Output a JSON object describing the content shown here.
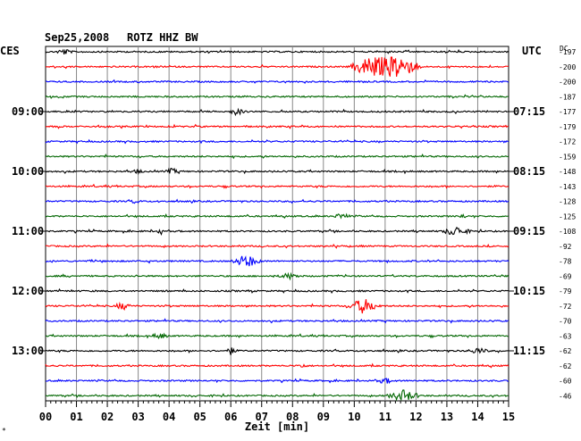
{
  "header": {
    "date": "Sep25,2008",
    "station": "ROTZ HHZ BW",
    "left_axis_label": "CES",
    "right_axis_label": "UTC",
    "dc_label": "DC"
  },
  "footer": {
    "xlabel": "Zeit [min]",
    "corner_mark": "*"
  },
  "chart_data": {
    "type": "line",
    "title": "Sep25,2008  ROTZ HHZ BW",
    "xlabel": "Zeit [min]",
    "x_ticks": [
      "00",
      "01",
      "02",
      "03",
      "04",
      "05",
      "06",
      "07",
      "08",
      "09",
      "10",
      "11",
      "12",
      "13",
      "14",
      "15"
    ],
    "xlim": [
      0,
      15
    ],
    "colors": {
      "black": "#000000",
      "red": "#ff0000",
      "blue": "#0000ff",
      "green": "#006600"
    },
    "left_time_labels": [
      {
        "row": 4,
        "label": "09:00"
      },
      {
        "row": 8,
        "label": "10:00"
      },
      {
        "row": 12,
        "label": "11:00"
      },
      {
        "row": 16,
        "label": "12:00"
      },
      {
        "row": 20,
        "label": "13:00"
      }
    ],
    "right_time_labels": [
      {
        "row": 4,
        "label": "07:15"
      },
      {
        "row": 8,
        "label": "08:15"
      },
      {
        "row": 12,
        "label": "09:15"
      },
      {
        "row": 16,
        "label": "10:15"
      },
      {
        "row": 20,
        "label": "11:15"
      }
    ],
    "traces": [
      {
        "color": "black",
        "dc": "-197",
        "events": [
          [
            0.6,
            3,
            0.3
          ]
        ]
      },
      {
        "color": "red",
        "dc": "-200",
        "events": [
          [
            10.5,
            12,
            0.7
          ],
          [
            11.4,
            14,
            0.8
          ]
        ]
      },
      {
        "color": "blue",
        "dc": "-200",
        "events": []
      },
      {
        "color": "green",
        "dc": "-187",
        "events": []
      },
      {
        "color": "black",
        "dc": "-177",
        "events": [
          [
            6.2,
            3,
            0.3
          ]
        ]
      },
      {
        "color": "red",
        "dc": "-179",
        "events": []
      },
      {
        "color": "blue",
        "dc": "-172",
        "events": []
      },
      {
        "color": "green",
        "dc": "-159",
        "events": []
      },
      {
        "color": "black",
        "dc": "-148",
        "events": [
          [
            4.1,
            3,
            0.25
          ],
          [
            3.0,
            2,
            0.2
          ]
        ]
      },
      {
        "color": "red",
        "dc": "-143",
        "events": []
      },
      {
        "color": "blue",
        "dc": "-128",
        "events": [
          [
            2.9,
            2,
            0.2
          ]
        ]
      },
      {
        "color": "green",
        "dc": "-125",
        "events": [
          [
            9.6,
            3,
            0.3
          ],
          [
            13.5,
            2,
            0.2
          ]
        ]
      },
      {
        "color": "black",
        "dc": "-108",
        "events": [
          [
            3.7,
            6,
            0.1
          ],
          [
            13.3,
            5,
            0.5
          ]
        ]
      },
      {
        "color": "red",
        "dc": "-92",
        "events": []
      },
      {
        "color": "blue",
        "dc": "-78",
        "events": [
          [
            6.5,
            7,
            0.5
          ]
        ]
      },
      {
        "color": "green",
        "dc": "-69",
        "events": [
          [
            7.9,
            3,
            0.4
          ]
        ]
      },
      {
        "color": "black",
        "dc": "-79",
        "events": []
      },
      {
        "color": "red",
        "dc": "-72",
        "events": [
          [
            2.5,
            4,
            0.3
          ],
          [
            10.3,
            8,
            0.6
          ]
        ]
      },
      {
        "color": "blue",
        "dc": "-70",
        "events": []
      },
      {
        "color": "green",
        "dc": "-63",
        "events": [
          [
            3.7,
            3,
            0.3
          ]
        ]
      },
      {
        "color": "black",
        "dc": "-62",
        "events": [
          [
            6.0,
            4,
            0.2
          ],
          [
            14.0,
            3,
            0.4
          ]
        ]
      },
      {
        "color": "red",
        "dc": "-62",
        "events": [
          [
            8.3,
            2,
            0.2
          ]
        ]
      },
      {
        "color": "blue",
        "dc": "-60",
        "events": [
          [
            11.0,
            3,
            0.3
          ]
        ]
      },
      {
        "color": "green",
        "dc": "-46",
        "events": [
          [
            11.6,
            6,
            0.6
          ]
        ]
      }
    ]
  }
}
